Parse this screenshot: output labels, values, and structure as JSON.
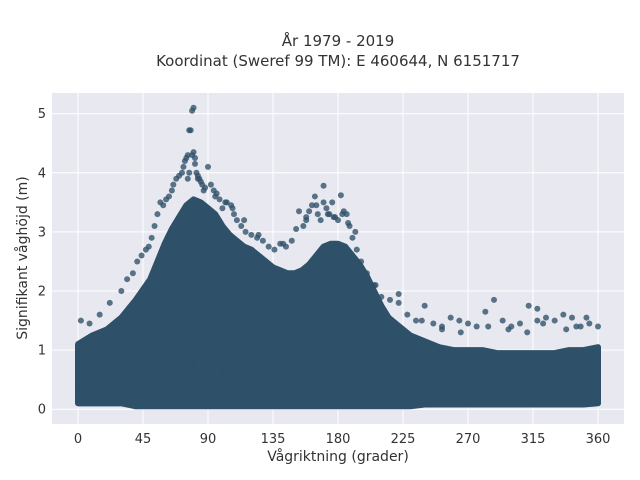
{
  "chart_data": {
    "type": "scatter",
    "title": "År 1979 - 2019",
    "subtitle": "Koordinat (Sweref 99 TM): E 460644, N 6151717",
    "xlabel": "Vågriktning (grader)",
    "ylabel": "Signifikant våghöjd (m)",
    "xlim": [
      -18,
      378
    ],
    "ylim": [
      -0.25,
      5.35
    ],
    "x_ticks": [
      0,
      45,
      90,
      135,
      180,
      225,
      270,
      315,
      360
    ],
    "y_ticks": [
      0,
      1,
      2,
      3,
      4,
      5
    ],
    "grid": true,
    "legend": "none",
    "marker_color": "#2e5068",
    "background_color": "#e8e8f0",
    "series": [
      {
        "x": [
          2,
          8,
          15,
          22,
          30,
          34,
          38,
          41,
          44,
          47,
          49,
          51,
          53,
          55,
          57,
          59,
          61,
          63,
          65,
          66,
          68,
          70,
          72,
          73,
          74,
          75,
          76,
          77,
          78,
          79,
          80,
          81,
          82,
          83,
          84,
          85,
          86,
          88,
          90,
          92,
          94,
          96,
          98,
          100,
          103,
          106,
          108,
          110,
          113,
          116,
          120,
          124,
          128,
          132,
          136,
          140,
          144,
          148,
          151,
          153,
          156,
          158,
          160,
          162,
          164,
          166,
          168,
          170,
          172,
          174,
          176,
          178,
          180,
          182,
          184,
          186,
          188,
          190,
          193,
          196,
          200,
          205,
          210,
          216,
          222,
          228,
          234,
          240,
          246,
          252,
          258,
          264,
          270,
          276,
          282,
          288,
          294,
          300,
          306,
          312,
          318,
          324,
          330,
          336,
          342,
          348,
          354,
          360,
          0,
          5,
          20,
          35,
          50,
          60,
          70,
          80,
          90,
          100,
          110,
          120,
          130,
          140,
          150,
          160,
          170,
          180,
          190,
          200,
          210,
          220,
          230,
          240,
          250,
          260,
          270,
          280,
          290,
          300,
          310,
          320,
          330,
          340,
          350,
          356,
          3,
          27,
          64,
          77,
          79,
          80,
          81,
          76,
          83,
          87,
          95,
          102,
          107,
          115,
          125,
          142,
          158,
          165,
          170,
          173,
          177,
          183,
          187,
          192,
          206,
          222,
          238,
          252,
          265,
          284,
          298,
          311,
          318,
          322,
          338,
          345,
          352
        ],
        "y": [
          1.5,
          1.45,
          1.6,
          1.8,
          2.0,
          2.2,
          2.3,
          2.5,
          2.6,
          2.7,
          2.75,
          2.9,
          3.1,
          3.3,
          3.5,
          3.45,
          3.55,
          3.6,
          3.7,
          3.8,
          3.9,
          3.95,
          4.0,
          4.1,
          4.2,
          4.25,
          4.3,
          4.72,
          4.72,
          5.05,
          5.1,
          4.15,
          4.0,
          3.95,
          3.9,
          3.85,
          3.8,
          3.75,
          4.1,
          3.8,
          3.7,
          3.65,
          3.55,
          3.4,
          3.5,
          3.45,
          3.3,
          3.2,
          3.1,
          3.0,
          2.95,
          2.9,
          2.85,
          2.75,
          2.7,
          2.8,
          2.75,
          2.85,
          3.05,
          3.35,
          3.1,
          3.25,
          3.35,
          3.45,
          3.6,
          3.3,
          3.2,
          3.78,
          3.4,
          3.3,
          3.5,
          3.25,
          3.2,
          3.62,
          3.35,
          3.3,
          3.1,
          2.9,
          2.7,
          2.5,
          2.3,
          2.1,
          1.9,
          1.85,
          1.95,
          1.6,
          1.5,
          1.75,
          1.45,
          1.4,
          1.55,
          1.5,
          1.45,
          1.4,
          1.65,
          1.85,
          1.5,
          1.4,
          1.45,
          1.75,
          1.7,
          1.55,
          1.5,
          1.6,
          1.55,
          1.4,
          1.45,
          1.4,
          0.35,
          0.3,
          0.45,
          0.55,
          0.6,
          0.65,
          0.7,
          0.75,
          0.7,
          0.65,
          0.6,
          0.55,
          0.5,
          0.5,
          0.45,
          0.5,
          0.55,
          0.5,
          0.45,
          0.4,
          0.4,
          0.35,
          0.3,
          0.3,
          0.35,
          0.3,
          0.3,
          0.35,
          0.3,
          0.3,
          0.35,
          0.3,
          0.3,
          0.35,
          0.3,
          0.3,
          1.0,
          1.3,
          2.9,
          4.0,
          4.3,
          4.35,
          4.25,
          3.9,
          3.9,
          3.7,
          3.6,
          3.5,
          3.4,
          3.2,
          2.95,
          2.8,
          3.2,
          3.45,
          3.5,
          3.3,
          3.25,
          3.3,
          3.15,
          3.0,
          2.1,
          1.8,
          1.5,
          1.35,
          1.3,
          1.4,
          1.35,
          1.3,
          1.5,
          1.45,
          1.35,
          1.4,
          1.55
        ]
      }
    ],
    "density_envelope": {
      "x": [
        0,
        10,
        20,
        30,
        40,
        50,
        55,
        60,
        65,
        70,
        75,
        80,
        85,
        90,
        95,
        100,
        105,
        110,
        115,
        120,
        125,
        130,
        135,
        140,
        145,
        150,
        155,
        160,
        165,
        170,
        175,
        180,
        185,
        190,
        195,
        200,
        205,
        210,
        215,
        220,
        225,
        230,
        240,
        250,
        260,
        270,
        280,
        290,
        300,
        310,
        320,
        330,
        340,
        350,
        360
      ],
      "upper": [
        1.1,
        1.25,
        1.35,
        1.55,
        1.85,
        2.2,
        2.5,
        2.8,
        3.05,
        3.25,
        3.45,
        3.55,
        3.5,
        3.4,
        3.3,
        3.1,
        2.95,
        2.85,
        2.75,
        2.7,
        2.6,
        2.5,
        2.4,
        2.35,
        2.3,
        2.3,
        2.35,
        2.45,
        2.6,
        2.75,
        2.8,
        2.8,
        2.75,
        2.6,
        2.45,
        2.25,
        2.0,
        1.75,
        1.55,
        1.45,
        1.35,
        1.25,
        1.15,
        1.05,
        1.0,
        1.0,
        1.0,
        0.95,
        0.95,
        0.95,
        0.95,
        0.95,
        1.0,
        1.0,
        1.05
      ],
      "lower": [
        0.1,
        0.1,
        0.1,
        0.1,
        0.05,
        0.05,
        0.05,
        0.05,
        0.05,
        0.05,
        0.05,
        0.05,
        0.05,
        0.05,
        0.05,
        0.05,
        0.05,
        0.05,
        0.05,
        0.05,
        0.05,
        0.05,
        0.05,
        0.05,
        0.05,
        0.05,
        0.05,
        0.05,
        0.05,
        0.05,
        0.05,
        0.05,
        0.05,
        0.05,
        0.05,
        0.05,
        0.05,
        0.05,
        0.05,
        0.05,
        0.05,
        0.05,
        0.08,
        0.08,
        0.08,
        0.08,
        0.08,
        0.08,
        0.08,
        0.08,
        0.08,
        0.08,
        0.08,
        0.08,
        0.1
      ]
    }
  }
}
